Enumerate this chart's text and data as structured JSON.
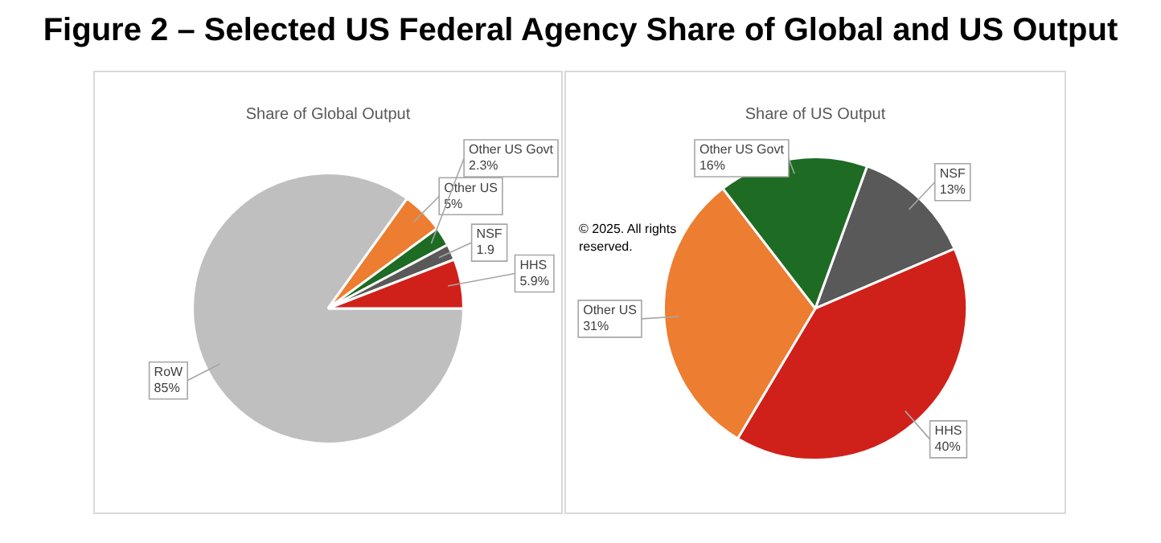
{
  "chart_data": [
    {
      "type": "pie",
      "title": "Figure 2 – Selected US Federal Agency Share of Global and US Output",
      "subtitle": "Share of Global Output",
      "categories": [
        "RoW",
        "Other US",
        "Other US Govt",
        "NSF",
        "HHS"
      ],
      "values": [
        85,
        5,
        2.3,
        1.9,
        5.9
      ],
      "colors": [
        "#bfbfbf",
        "#ed7d31",
        "#1e6b24",
        "#595959",
        "#d0201a"
      ],
      "value_labels": [
        "85%",
        "5%",
        "2.3%",
        "1.9",
        "5.9%"
      ],
      "legend": false
    },
    {
      "type": "pie",
      "title": "Share of US Output",
      "categories": [
        "NSF",
        "HHS",
        "Other US",
        "Other US Govt"
      ],
      "values": [
        13,
        40,
        31,
        16
      ],
      "colors": [
        "#595959",
        "#d0201a",
        "#ed7d31",
        "#1e6b24"
      ],
      "value_labels": [
        "13%",
        "40%",
        "31%",
        "16%"
      ],
      "legend": false,
      "annotations": [
        "© 2025. All rights reserved."
      ]
    }
  ]
}
